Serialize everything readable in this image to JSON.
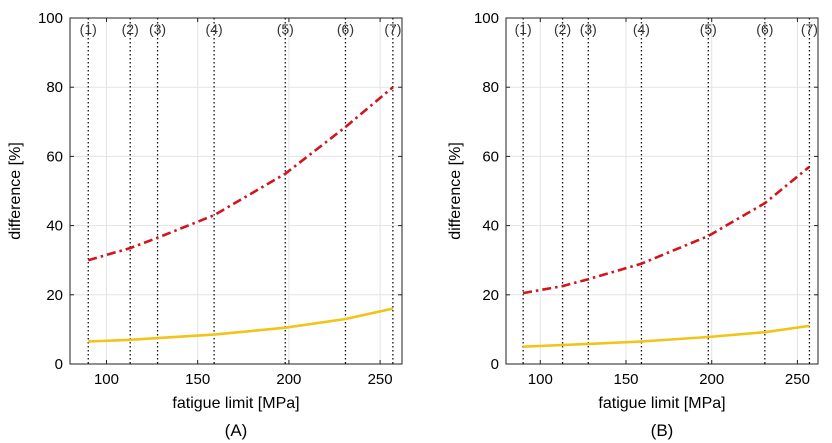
{
  "chart_data": [
    {
      "type": "line",
      "panel_label": "(A)",
      "xlabel": "fatigue limit [MPa]",
      "ylabel": "difference [%]",
      "xlim": [
        80,
        262
      ],
      "ylim": [
        0,
        100
      ],
      "xticks": [
        100,
        150,
        200,
        250
      ],
      "yticks": [
        0,
        20,
        40,
        60,
        80,
        100
      ],
      "grid": true,
      "markers": [
        {
          "label": "(1)",
          "x": 90
        },
        {
          "label": "(2)",
          "x": 113
        },
        {
          "label": "(3)",
          "x": 128
        },
        {
          "label": "(4)",
          "x": 159
        },
        {
          "label": "(5)",
          "x": 198
        },
        {
          "label": "(6)",
          "x": 231
        },
        {
          "label": "(7)",
          "x": 257
        }
      ],
      "series": [
        {
          "color": "#d0151c",
          "style": "dashdot",
          "x": [
            90,
            113,
            128,
            159,
            198,
            231,
            257
          ],
          "y": [
            30,
            33.5,
            36.5,
            43,
            55,
            68.5,
            80
          ]
        },
        {
          "color": "#f2c318",
          "style": "solid",
          "x": [
            90,
            113,
            128,
            159,
            198,
            231,
            257
          ],
          "y": [
            6.5,
            7,
            7.5,
            8.5,
            10.5,
            13,
            16
          ]
        }
      ]
    },
    {
      "type": "line",
      "panel_label": "(B)",
      "xlabel": "fatigue limit [MPa]",
      "ylabel": "difference [%]",
      "xlim": [
        80,
        262
      ],
      "ylim": [
        0,
        100
      ],
      "xticks": [
        100,
        150,
        200,
        250
      ],
      "yticks": [
        0,
        20,
        40,
        60,
        80,
        100
      ],
      "grid": true,
      "markers": [
        {
          "label": "(1)",
          "x": 90
        },
        {
          "label": "(2)",
          "x": 113
        },
        {
          "label": "(3)",
          "x": 128
        },
        {
          "label": "(4)",
          "x": 159
        },
        {
          "label": "(5)",
          "x": 198
        },
        {
          "label": "(6)",
          "x": 231
        },
        {
          "label": "(7)",
          "x": 257
        }
      ],
      "series": [
        {
          "color": "#d0151c",
          "style": "dashdot",
          "x": [
            90,
            113,
            128,
            159,
            198,
            231,
            257
          ],
          "y": [
            20.5,
            22.5,
            24.5,
            29,
            37,
            46.5,
            57
          ]
        },
        {
          "color": "#f2c318",
          "style": "solid",
          "x": [
            90,
            113,
            128,
            159,
            198,
            231,
            257
          ],
          "y": [
            5,
            5.5,
            5.8,
            6.5,
            7.8,
            9.2,
            11
          ]
        }
      ]
    }
  ]
}
